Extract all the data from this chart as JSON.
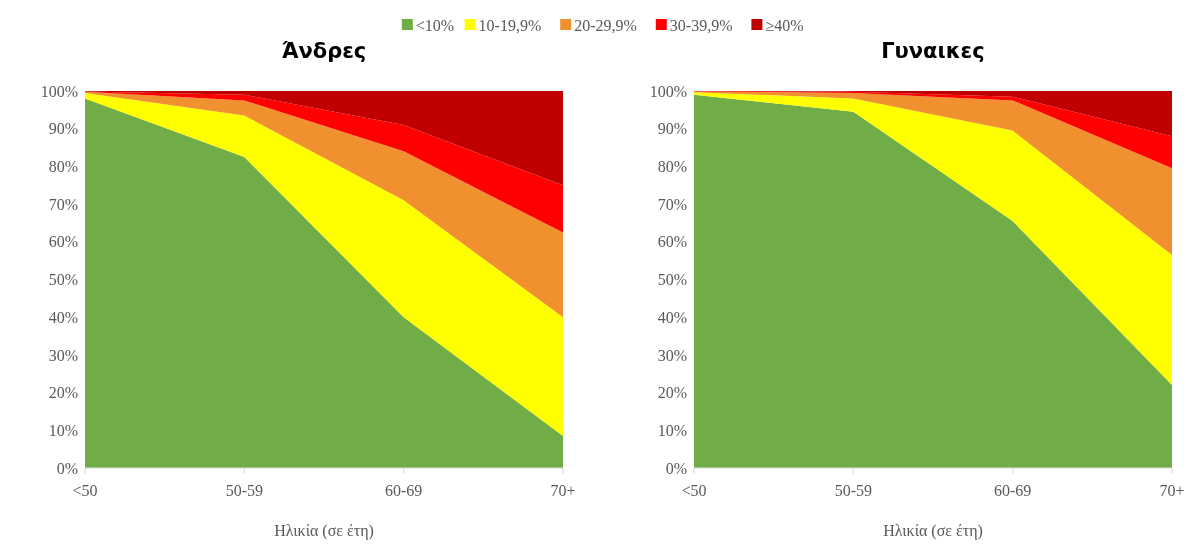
{
  "chart_data": [
    {
      "type": "area",
      "stacked": true,
      "title": "Άνδρες",
      "xlabel": "Ηλικία (σε έτη)",
      "categories": [
        "<50",
        "50-59",
        "60-69",
        "70+"
      ],
      "ylim": [
        0,
        100
      ],
      "yticks": [
        {
          "value": 0,
          "label": "0%"
        },
        {
          "value": 10,
          "label": "10%"
        },
        {
          "value": 20,
          "label": "20%"
        },
        {
          "value": 30,
          "label": "30%"
        },
        {
          "value": 40,
          "label": "40%"
        },
        {
          "value": 50,
          "label": "50%"
        },
        {
          "value": 60,
          "label": "60%"
        },
        {
          "value": 70,
          "label": "70%"
        },
        {
          "value": 80,
          "label": "80%"
        },
        {
          "value": 90,
          "label": "90%"
        },
        {
          "value": 100,
          "label": "100%"
        }
      ],
      "legend": "top",
      "grid": false,
      "series": [
        {
          "name": "<10%",
          "color": "#70ad47",
          "values": [
            98,
            82.5,
            40,
            8.5
          ]
        },
        {
          "name": "10-19,9%",
          "color": "#ffff00",
          "values": [
            1.5,
            11,
            31,
            31.5
          ]
        },
        {
          "name": "20-29,9%",
          "color": "#f0902f",
          "values": [
            0.3,
            4,
            13,
            22.5
          ]
        },
        {
          "name": "30-39,9%",
          "color": "#ff0000",
          "values": [
            0.1,
            1.5,
            7,
            12.5
          ]
        },
        {
          "name": "≥40%",
          "color": "#c00000",
          "values": [
            0.1,
            1,
            9,
            25
          ]
        }
      ]
    },
    {
      "type": "area",
      "stacked": true,
      "title": "Γυναικες",
      "xlabel": "Ηλικία (σε έτη)",
      "categories": [
        "<50",
        "50-59",
        "60-69",
        "70+"
      ],
      "ylim": [
        0,
        100
      ],
      "yticks": [
        {
          "value": 0,
          "label": "0%"
        },
        {
          "value": 10,
          "label": "10%"
        },
        {
          "value": 20,
          "label": "20%"
        },
        {
          "value": 30,
          "label": "30%"
        },
        {
          "value": 40,
          "label": "40%"
        },
        {
          "value": 50,
          "label": "50%"
        },
        {
          "value": 60,
          "label": "60%"
        },
        {
          "value": 70,
          "label": "70%"
        },
        {
          "value": 80,
          "label": "80%"
        },
        {
          "value": 90,
          "label": "90%"
        },
        {
          "value": 100,
          "label": "100%"
        }
      ],
      "grid": false,
      "series": [
        {
          "color": "#70ad47",
          "values": [
            99,
            94.5,
            65.5,
            22
          ]
        },
        {
          "color": "#ffff00",
          "values": [
            0.7,
            3.5,
            24,
            34.5
          ]
        },
        {
          "color": "#f0902f",
          "values": [
            0.2,
            1.5,
            8,
            23
          ]
        },
        {
          "color": "#ff0000",
          "values": [
            0.1,
            0.3,
            1,
            8.5
          ]
        },
        {
          "color": "#c00000",
          "values": [
            0,
            0.2,
            1.5,
            12
          ]
        }
      ]
    }
  ]
}
